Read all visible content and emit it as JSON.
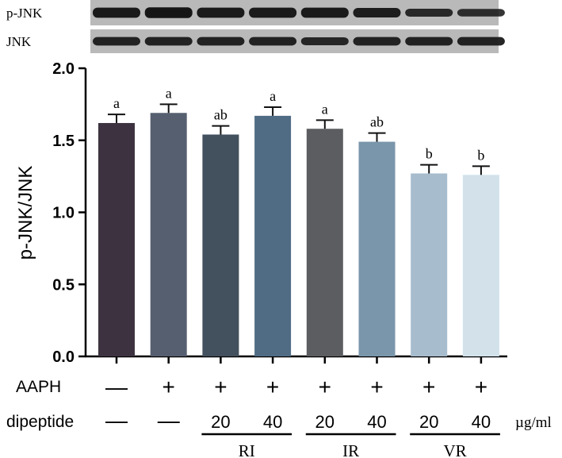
{
  "blots": [
    {
      "label": "p-JNK",
      "intensities": [
        0.95,
        1.0,
        0.95,
        0.95,
        0.95,
        0.9,
        0.75,
        0.7
      ]
    },
    {
      "label": "JNK",
      "intensities": [
        0.85,
        0.85,
        0.85,
        0.85,
        0.8,
        0.85,
        0.85,
        0.85
      ]
    }
  ],
  "chart_data": {
    "type": "bar",
    "ylabel": "p-JNK/JNK",
    "ylim": [
      0,
      2.0
    ],
    "yticks": [
      "0.0",
      "0.5",
      "1.0",
      "1.5",
      "2.0"
    ],
    "values": [
      1.62,
      1.69,
      1.54,
      1.67,
      1.58,
      1.49,
      1.27,
      1.26
    ],
    "errors": [
      0.06,
      0.06,
      0.06,
      0.06,
      0.06,
      0.06,
      0.06,
      0.06
    ],
    "significance": [
      "a",
      "a",
      "ab",
      "a",
      "a",
      "ab",
      "b",
      "b"
    ],
    "colors": [
      "#3d3340",
      "#565f70",
      "#43505e",
      "#506c84",
      "#5c5d60",
      "#7a96aa",
      "#a7bccd",
      "#d2e1ea"
    ]
  },
  "conditions": {
    "aaph_label": "AAPH",
    "aaph": [
      "—",
      "+",
      "+",
      "+",
      "+",
      "+",
      "+",
      "+"
    ],
    "dipeptide_label": "dipeptide",
    "dipeptide": [
      "—",
      "—",
      "20",
      "40",
      "20",
      "40",
      "20",
      "40"
    ],
    "unit": "µg/ml",
    "groups": [
      "RI",
      "IR",
      "VR"
    ]
  }
}
